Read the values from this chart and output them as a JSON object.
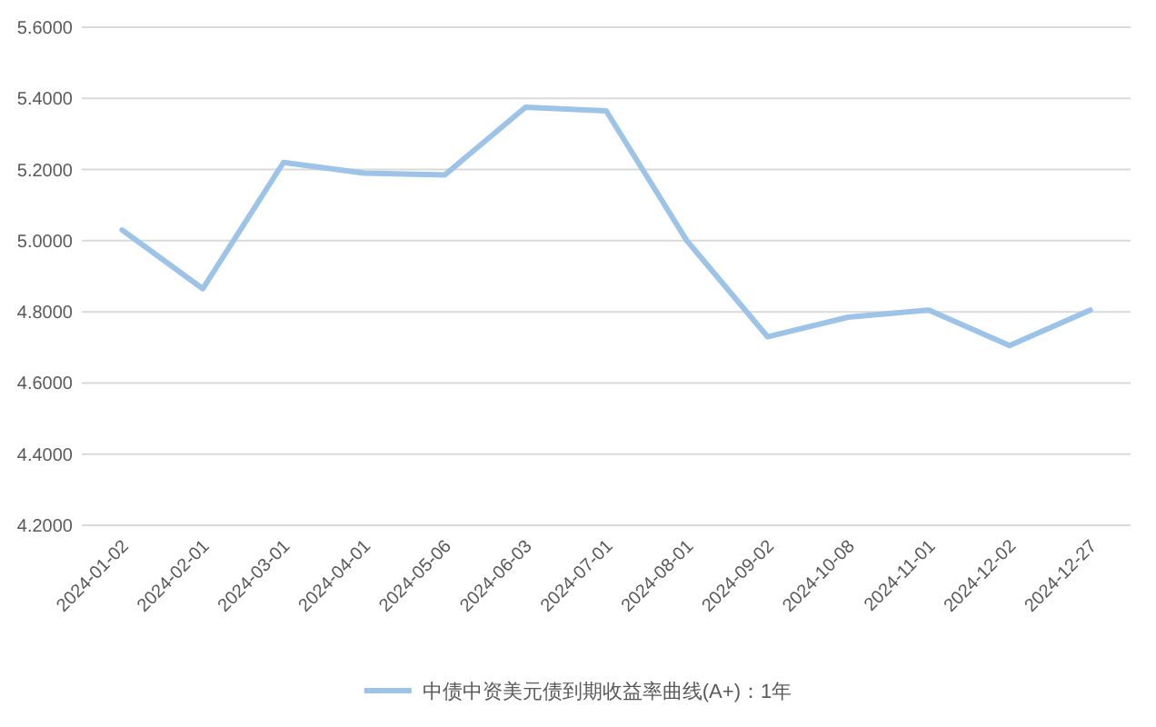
{
  "chart_data": {
    "type": "line",
    "categories": [
      "2024-01-02",
      "2024-02-01",
      "2024-03-01",
      "2024-04-01",
      "2024-05-06",
      "2024-06-03",
      "2024-07-01",
      "2024-08-01",
      "2024-09-02",
      "2024-10-08",
      "2024-11-01",
      "2024-12-02",
      "2024-12-27"
    ],
    "series": [
      {
        "name": "中债中资美元债到期收益率曲线(A+)：1年",
        "color": "#9dc3e6",
        "values": [
          5.03,
          4.865,
          5.22,
          5.19,
          5.185,
          5.375,
          5.365,
          5.0,
          4.73,
          4.785,
          4.805,
          4.705,
          4.805
        ]
      }
    ],
    "ylim": [
      4.2,
      5.6
    ],
    "yticks": [
      {
        "value": 4.2,
        "label": "4.2000"
      },
      {
        "value": 4.4,
        "label": "4.4000"
      },
      {
        "value": 4.6,
        "label": "4.6000"
      },
      {
        "value": 4.8,
        "label": "4.8000"
      },
      {
        "value": 5.0,
        "label": "5.0000"
      },
      {
        "value": 5.2,
        "label": "5.2000"
      },
      {
        "value": 5.4,
        "label": "5.4000"
      },
      {
        "value": 5.6,
        "label": "5.6000"
      }
    ],
    "grid": "y",
    "legend": "bottom",
    "marker": "none",
    "line_style": "solid"
  }
}
